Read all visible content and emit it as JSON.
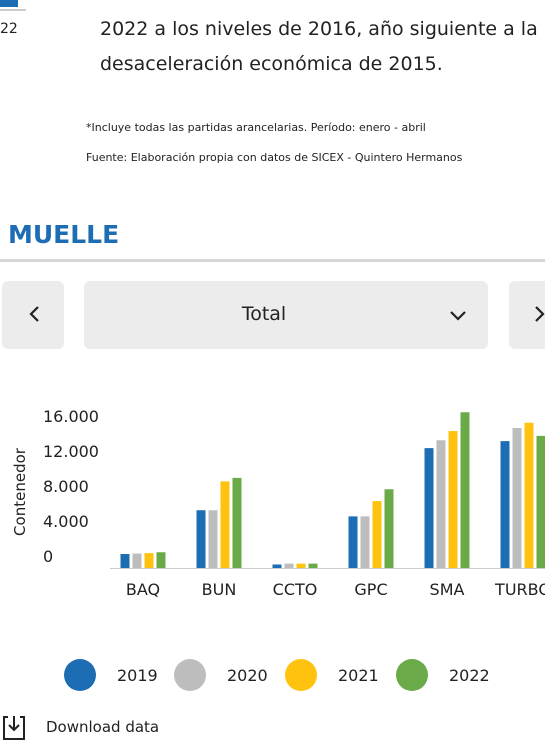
{
  "page": {
    "side_label": "22",
    "paragraph": [
      "2022 a los niveles de 2016, año siguiente a la",
      "desaceleración económica de 2015."
    ],
    "notes": [
      "*Incluye todas las partidas arancelarias. Período: enero - abril",
      "Fuente: Elaboración propia con datos de SICEX - Quintero Hermanos"
    ],
    "heading": "MUELLE",
    "dropdown": "Total",
    "download": "Download data"
  },
  "chart_data": {
    "type": "bar",
    "y_label": "Contenedor",
    "categories": [
      "BAQ",
      "BUN",
      "CCTO",
      "GPC",
      "SMA",
      "TURBO"
    ],
    "series": [
      {
        "name": "2019",
        "color": "#1c6db3",
        "values": [
          1600,
          6600,
          400,
          5900,
          13700,
          14500
        ]
      },
      {
        "name": "2020",
        "color": "#bdbdbd",
        "values": [
          1650,
          6600,
          500,
          5900,
          14600,
          16000
        ]
      },
      {
        "name": "2021",
        "color": "#ffc20e",
        "values": [
          1700,
          9900,
          500,
          7650,
          15650,
          16600
        ]
      },
      {
        "name": "2022",
        "color": "#6aaa48",
        "values": [
          1800,
          10300,
          500,
          9000,
          17800,
          15100
        ]
      }
    ],
    "ylim": [
      0,
      18000
    ],
    "yticks": [
      0,
      {
        "value": 4000,
        "label": "4.000"
      },
      {
        "value": 8000,
        "label": "8.000"
      },
      {
        "value": 12000,
        "label": "12.000"
      },
      {
        "value": 16000,
        "label": "16.000"
      }
    ],
    "grid": false
  }
}
